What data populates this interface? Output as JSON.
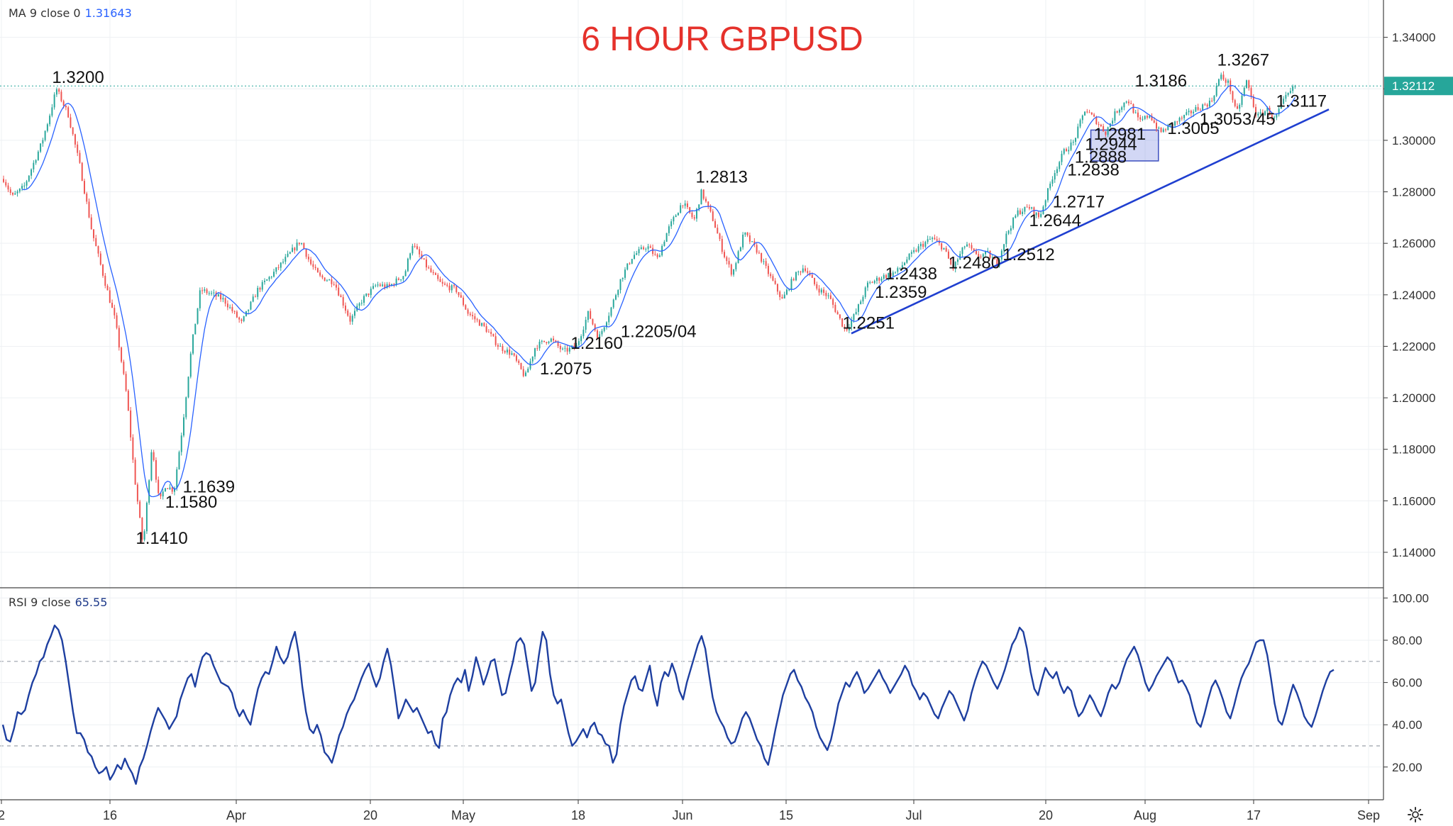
{
  "title": "6 HOUR GBPUSD",
  "indicators": {
    "ma": {
      "label": "MA 9 close 0",
      "value": "1.31643"
    },
    "rsi": {
      "label": "RSI 9 close",
      "value": "65.55"
    }
  },
  "current_price_label": "1.32112",
  "colors": {
    "bull": "#26a69a",
    "bear": "#ef5350",
    "ma": "#2962ff",
    "rsi": "#1e3fa0",
    "trend": "#1f3fd0",
    "title": "#e5312b"
  },
  "chart_data": [
    {
      "type": "candlestick",
      "title": "6 HOUR GBPUSD",
      "xlabel": "",
      "ylabel": "",
      "ylim": [
        1.1265,
        1.3545
      ],
      "x_ticks": [
        "2",
        "16",
        "Apr",
        "20",
        "May",
        "18",
        "Jun",
        "15",
        "Jul",
        "20",
        "Aug",
        "17",
        "Sep"
      ],
      "y_ticks": [
        "1.14000",
        "1.16000",
        "1.18000",
        "1.20000",
        "1.22000",
        "1.24000",
        "1.26000",
        "1.28000",
        "1.30000",
        "1.32000",
        "1.34000"
      ],
      "current_price": 1.32112,
      "pivots": [
        {
          "x": 0.0,
          "y": 1.285
        },
        {
          "x": 0.6,
          "y": 1.278
        },
        {
          "x": 1.4,
          "y": 1.282
        },
        {
          "x": 2.6,
          "y": 1.299
        },
        {
          "x": 3.1,
          "y": 1.309
        },
        {
          "x": 3.6,
          "y": 1.32
        },
        {
          "x": 4.4,
          "y": 1.31
        },
        {
          "x": 5.2,
          "y": 1.29
        },
        {
          "x": 6.0,
          "y": 1.265
        },
        {
          "x": 6.9,
          "y": 1.245
        },
        {
          "x": 7.6,
          "y": 1.23
        },
        {
          "x": 8.4,
          "y": 1.2
        },
        {
          "x": 8.9,
          "y": 1.17
        },
        {
          "x": 9.5,
          "y": 1.142
        },
        {
          "x": 10.1,
          "y": 1.182
        },
        {
          "x": 10.6,
          "y": 1.159
        },
        {
          "x": 11.0,
          "y": 1.166
        },
        {
          "x": 11.6,
          "y": 1.164
        },
        {
          "x": 12.2,
          "y": 1.19
        },
        {
          "x": 12.8,
          "y": 1.22
        },
        {
          "x": 13.4,
          "y": 1.242
        },
        {
          "x": 14.3,
          "y": 1.24
        },
        {
          "x": 15.0,
          "y": 1.238
        },
        {
          "x": 16.2,
          "y": 1.229
        },
        {
          "x": 17.3,
          "y": 1.242
        },
        {
          "x": 18.3,
          "y": 1.248
        },
        {
          "x": 19.2,
          "y": 1.254
        },
        {
          "x": 20.2,
          "y": 1.261
        },
        {
          "x": 20.9,
          "y": 1.252
        },
        {
          "x": 21.5,
          "y": 1.247
        },
        {
          "x": 22.5,
          "y": 1.245
        },
        {
          "x": 23.6,
          "y": 1.23
        },
        {
          "x": 24.4,
          "y": 1.238
        },
        {
          "x": 25.4,
          "y": 1.244
        },
        {
          "x": 26.2,
          "y": 1.243
        },
        {
          "x": 27.3,
          "y": 1.248
        },
        {
          "x": 27.8,
          "y": 1.26
        },
        {
          "x": 28.9,
          "y": 1.25
        },
        {
          "x": 29.8,
          "y": 1.244
        },
        {
          "x": 30.8,
          "y": 1.242
        },
        {
          "x": 31.6,
          "y": 1.233
        },
        {
          "x": 32.8,
          "y": 1.227
        },
        {
          "x": 33.7,
          "y": 1.22
        },
        {
          "x": 34.6,
          "y": 1.217
        },
        {
          "x": 35.5,
          "y": 1.208
        },
        {
          "x": 36.2,
          "y": 1.22
        },
        {
          "x": 37.2,
          "y": 1.223
        },
        {
          "x": 38.1,
          "y": 1.218
        },
        {
          "x": 39.0,
          "y": 1.22
        },
        {
          "x": 39.8,
          "y": 1.233
        },
        {
          "x": 40.5,
          "y": 1.223
        },
        {
          "x": 41.3,
          "y": 1.234
        },
        {
          "x": 42.0,
          "y": 1.246
        },
        {
          "x": 42.8,
          "y": 1.255
        },
        {
          "x": 43.8,
          "y": 1.259
        },
        {
          "x": 44.5,
          "y": 1.254
        },
        {
          "x": 45.2,
          "y": 1.265
        },
        {
          "x": 46.2,
          "y": 1.276
        },
        {
          "x": 47.0,
          "y": 1.269
        },
        {
          "x": 47.5,
          "y": 1.28
        },
        {
          "x": 48.3,
          "y": 1.269
        },
        {
          "x": 49.0,
          "y": 1.256
        },
        {
          "x": 49.6,
          "y": 1.248
        },
        {
          "x": 50.4,
          "y": 1.264
        },
        {
          "x": 51.3,
          "y": 1.257
        },
        {
          "x": 52.0,
          "y": 1.249
        },
        {
          "x": 53.0,
          "y": 1.238
        },
        {
          "x": 53.8,
          "y": 1.247
        },
        {
          "x": 54.5,
          "y": 1.251
        },
        {
          "x": 55.3,
          "y": 1.243
        },
        {
          "x": 56.2,
          "y": 1.239
        },
        {
          "x": 57.3,
          "y": 1.226
        },
        {
          "x": 58.0,
          "y": 1.233
        },
        {
          "x": 58.8,
          "y": 1.244
        },
        {
          "x": 59.8,
          "y": 1.247
        },
        {
          "x": 60.8,
          "y": 1.249
        },
        {
          "x": 61.5,
          "y": 1.254
        },
        {
          "x": 62.4,
          "y": 1.259
        },
        {
          "x": 63.2,
          "y": 1.262
        },
        {
          "x": 64.0,
          "y": 1.258
        },
        {
          "x": 64.6,
          "y": 1.25
        },
        {
          "x": 65.5,
          "y": 1.26
        },
        {
          "x": 66.2,
          "y": 1.255
        },
        {
          "x": 67.0,
          "y": 1.256
        },
        {
          "x": 67.6,
          "y": 1.252
        },
        {
          "x": 68.3,
          "y": 1.264
        },
        {
          "x": 69.0,
          "y": 1.272
        },
        {
          "x": 69.8,
          "y": 1.274
        },
        {
          "x": 70.5,
          "y": 1.27
        },
        {
          "x": 71.4,
          "y": 1.286
        },
        {
          "x": 72.2,
          "y": 1.296
        },
        {
          "x": 72.8,
          "y": 1.299
        },
        {
          "x": 73.6,
          "y": 1.312
        },
        {
          "x": 74.3,
          "y": 1.308
        },
        {
          "x": 75.0,
          "y": 1.303
        },
        {
          "x": 75.7,
          "y": 1.311
        },
        {
          "x": 76.5,
          "y": 1.316
        },
        {
          "x": 77.3,
          "y": 1.307
        },
        {
          "x": 78.0,
          "y": 1.31
        },
        {
          "x": 78.7,
          "y": 1.303
        },
        {
          "x": 79.5,
          "y": 1.306
        },
        {
          "x": 80.3,
          "y": 1.309
        },
        {
          "x": 81.1,
          "y": 1.312
        },
        {
          "x": 82.2,
          "y": 1.315
        },
        {
          "x": 82.8,
          "y": 1.325
        },
        {
          "x": 83.4,
          "y": 1.322
        },
        {
          "x": 83.9,
          "y": 1.31
        },
        {
          "x": 84.6,
          "y": 1.323
        },
        {
          "x": 85.3,
          "y": 1.309
        },
        {
          "x": 86.0,
          "y": 1.312
        },
        {
          "x": 86.5,
          "y": 1.308
        },
        {
          "x": 87.2,
          "y": 1.316
        },
        {
          "x": 87.9,
          "y": 1.3211
        }
      ],
      "trendline": [
        {
          "x": 57.7,
          "y": 1.225
        },
        {
          "x": 90.2,
          "y": 1.312
        }
      ],
      "box": {
        "x0": 74.0,
        "x1": 78.6,
        "y0": 1.292,
        "y1": 1.304
      },
      "annotations": [
        {
          "text": "1.3200",
          "x": 3.3,
          "y": 1.3223
        },
        {
          "text": "1.1639",
          "x": 12.2,
          "y": 1.1632
        },
        {
          "text": "1.1580",
          "x": 11.0,
          "y": 1.1573
        },
        {
          "text": "1.1410",
          "x": 9.0,
          "y": 1.1433
        },
        {
          "text": "1.2075",
          "x": 36.5,
          "y": 1.2091
        },
        {
          "text": "1.2160",
          "x": 38.6,
          "y": 1.219
        },
        {
          "text": "1.2205/04",
          "x": 42.0,
          "y": 1.2236
        },
        {
          "text": "1.2813",
          "x": 47.1,
          "y": 1.2836
        },
        {
          "text": "1.2251",
          "x": 57.1,
          "y": 1.2269
        },
        {
          "text": "1.2359",
          "x": 59.3,
          "y": 1.2388
        },
        {
          "text": "1.2438",
          "x": 60.0,
          "y": 1.246
        },
        {
          "text": "1.2480",
          "x": 64.3,
          "y": 1.2503
        },
        {
          "text": "1.2512",
          "x": 68.0,
          "y": 1.2534
        },
        {
          "text": "1.2644",
          "x": 69.8,
          "y": 1.2666
        },
        {
          "text": "1.2717",
          "x": 71.4,
          "y": 1.2739
        },
        {
          "text": "1.2838",
          "x": 72.4,
          "y": 1.2864
        },
        {
          "text": "1.2888",
          "x": 72.9,
          "y": 1.2913
        },
        {
          "text": "1.2944",
          "x": 73.6,
          "y": 1.2963
        },
        {
          "text": "1.2981",
          "x": 74.2,
          "y": 1.3002
        },
        {
          "text": "1.3186",
          "x": 77.0,
          "y": 1.3209
        },
        {
          "text": "1.3267",
          "x": 82.6,
          "y": 1.329
        },
        {
          "text": "1.3005",
          "x": 79.2,
          "y": 1.3025
        },
        {
          "text": "1.3053/45",
          "x": 81.4,
          "y": 1.306
        },
        {
          "text": "1.3117",
          "x": 86.6,
          "y": 1.313
        }
      ]
    },
    {
      "type": "line",
      "name": "RSI 9 close",
      "ylim": [
        4.5,
        104.5
      ],
      "y_ticks": [
        "20.00",
        "40.00",
        "60.00",
        "80.00",
        "100.00"
      ],
      "levels": [
        30,
        70
      ],
      "values": [
        40,
        33,
        32,
        38,
        46,
        45,
        47,
        54,
        60,
        64,
        70,
        72,
        78,
        82,
        87,
        85,
        80,
        70,
        58,
        46,
        36,
        36,
        33,
        27,
        25,
        20,
        17,
        18,
        20,
        14,
        17,
        21,
        19,
        24,
        20,
        17,
        12,
        20,
        24,
        30,
        37,
        43,
        48,
        45,
        42,
        38,
        41,
        44,
        52,
        57,
        62,
        64,
        58,
        66,
        72,
        74,
        73,
        68,
        64,
        60,
        59,
        58,
        55,
        48,
        44,
        47,
        43,
        40,
        49,
        57,
        62,
        65,
        64,
        70,
        77,
        72,
        69,
        72,
        79,
        84,
        74,
        58,
        46,
        38,
        36,
        40,
        35,
        27,
        25,
        22,
        28,
        35,
        39,
        45,
        49,
        52,
        57,
        62,
        66,
        69,
        63,
        58,
        62,
        70,
        76,
        68,
        56,
        43,
        47,
        52,
        49,
        46,
        48,
        44,
        40,
        36,
        37,
        31,
        29,
        43,
        46,
        54,
        59,
        62,
        60,
        66,
        56,
        63,
        72,
        66,
        59,
        64,
        70,
        71,
        62,
        54,
        55,
        63,
        70,
        79,
        81,
        78,
        67,
        56,
        60,
        73,
        84,
        80,
        64,
        54,
        50,
        52,
        44,
        36,
        30,
        32,
        35,
        38,
        34,
        39,
        41,
        36,
        35,
        31,
        30,
        22,
        26,
        40,
        49,
        55,
        61,
        63,
        57,
        56,
        62,
        68,
        56,
        49,
        60,
        65,
        63,
        69,
        64,
        56,
        52,
        60,
        66,
        72,
        78,
        82,
        76,
        64,
        53,
        46,
        42,
        39,
        34,
        31,
        32,
        37,
        43,
        46,
        43,
        38,
        33,
        30,
        24,
        21,
        29,
        38,
        46,
        54,
        59,
        64,
        66,
        61,
        58,
        53,
        50,
        46,
        39,
        34,
        31,
        28,
        33,
        41,
        50,
        55,
        60,
        58,
        62,
        65,
        61,
        55,
        57,
        60,
        63,
        66,
        62,
        59,
        55,
        58,
        61,
        64,
        68,
        65,
        59,
        56,
        52,
        55,
        53,
        49,
        45,
        43,
        48,
        52,
        56,
        54,
        50,
        46,
        42,
        47,
        55,
        61,
        66,
        70,
        68,
        64,
        60,
        57,
        61,
        66,
        72,
        78,
        81,
        86,
        84,
        76,
        65,
        57,
        54,
        61,
        67,
        64,
        62,
        65,
        59,
        55,
        58,
        56,
        49,
        44,
        46,
        50,
        54,
        51,
        47,
        44,
        49,
        55,
        59,
        57,
        60,
        66,
        71,
        74,
        77,
        73,
        67,
        60,
        56,
        59,
        63,
        66,
        69,
        72,
        70,
        65,
        60,
        61,
        58,
        54,
        47,
        41,
        39,
        45,
        52,
        58,
        61,
        57,
        52,
        46,
        43,
        49,
        56,
        62,
        66,
        69,
        74,
        79,
        80,
        80,
        73,
        62,
        50,
        42,
        40,
        46,
        53,
        59,
        55,
        50,
        44,
        41,
        39,
        44,
        50,
        56,
        61,
        65,
        66
      ]
    }
  ]
}
